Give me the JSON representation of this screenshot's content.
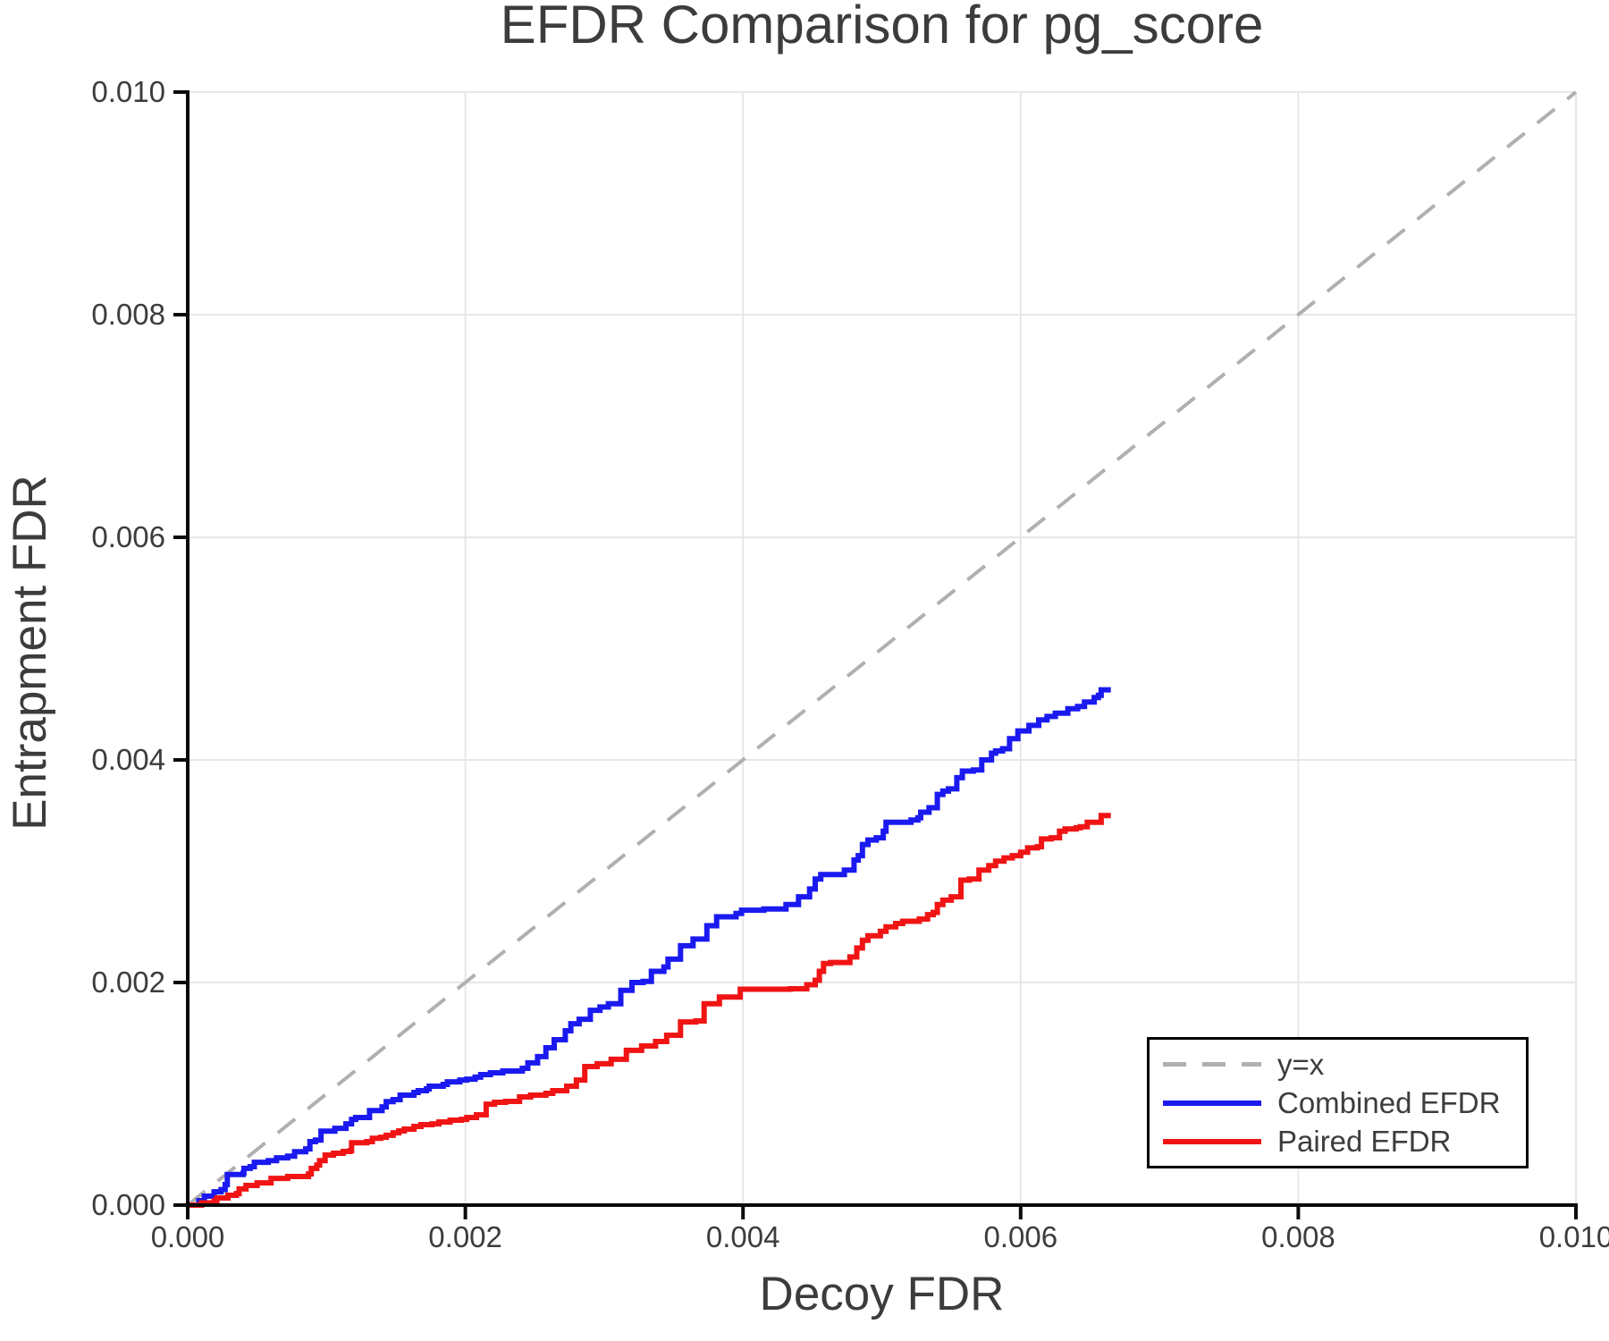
{
  "title": "EFDR Comparison for pg_score",
  "axes": {
    "xlabel": "Decoy FDR",
    "ylabel": "Entrapment FDR",
    "x_ticks": {
      "values": [
        0,
        0.002,
        0.004,
        0.006,
        0.008,
        0.01
      ],
      "labels": [
        "0.000",
        "0.002",
        "0.004",
        "0.006",
        "0.008",
        "0.010"
      ]
    },
    "y_ticks": {
      "values": [
        0,
        0.002,
        0.004,
        0.006,
        0.008,
        0.01
      ],
      "labels": [
        "0.000",
        "0.002",
        "0.004",
        "0.006",
        "0.008",
        "0.010"
      ]
    }
  },
  "style": {
    "grid_color": "#e7e7e7",
    "spine_color": "#0a0a0a",
    "text_color": "#3c3c3c",
    "dash_color": "#b0b0b0",
    "combined_color": "#1a1af0",
    "paired_color": "#f01414"
  },
  "legend": {
    "items": [
      {
        "label": "y=x",
        "color": "#b0b0b0",
        "dashed": true
      },
      {
        "label": "Combined EFDR",
        "color": "#1a1af0",
        "dashed": false
      },
      {
        "label": "Paired EFDR",
        "color": "#f01414",
        "dashed": false
      }
    ]
  },
  "chart_data": {
    "type": "line",
    "title": "EFDR Comparison for pg_score",
    "xlabel": "Decoy FDR",
    "ylabel": "Entrapment FDR",
    "xlim": [
      0,
      0.01
    ],
    "ylim": [
      0,
      0.01
    ],
    "grid": true,
    "legend_position": "lower right",
    "series": [
      {
        "name": "y=x",
        "color": "#b0b0b0",
        "dashed": true,
        "step": false,
        "width": 4,
        "points": [
          [
            0,
            0
          ],
          [
            0.01,
            0.01
          ]
        ]
      },
      {
        "name": "Combined EFDR",
        "color": "#1a1af0",
        "dashed": false,
        "step": true,
        "width": 6,
        "points": [
          [
            0,
            0
          ],
          [
            8e-05,
            4e-05
          ],
          [
            0.00012,
            8e-05
          ],
          [
            0.00019,
            0.00012
          ],
          [
            0.00024,
            0.00014
          ],
          [
            0.00027,
            0.000185
          ],
          [
            0.000285,
            0.000275
          ],
          [
            0.0004,
            0.00029
          ],
          [
            0.000405,
            0.00033
          ],
          [
            0.00045,
            0.000345
          ],
          [
            0.00048,
            0.000385
          ],
          [
            0.00058,
            0.0004
          ],
          [
            0.00064,
            0.000425
          ],
          [
            0.00072,
            0.00044
          ],
          [
            0.00077,
            0.00048
          ],
          [
            0.00085,
            0.000505
          ],
          [
            0.00088,
            0.00057
          ],
          [
            0.00092,
            0.000585
          ],
          [
            0.00096,
            0.000665
          ],
          [
            0.00106,
            0.00069
          ],
          [
            0.00114,
            0.00073
          ],
          [
            0.00118,
            0.00077
          ],
          [
            0.00121,
            0.000787
          ],
          [
            0.00131,
            0.00085
          ],
          [
            0.0014,
            0.000883
          ],
          [
            0.00143,
            0.00093
          ],
          [
            0.00148,
            0.000948
          ],
          [
            0.00153,
            0.000988
          ],
          [
            0.00163,
            0.001012
          ],
          [
            0.00166,
            0.001028
          ],
          [
            0.00172,
            0.001044
          ],
          [
            0.00174,
            0.001068
          ],
          [
            0.00184,
            0.001084
          ],
          [
            0.00187,
            0.001108
          ],
          [
            0.00196,
            0.001124
          ],
          [
            0.00201,
            0.001132
          ],
          [
            0.00207,
            0.001149
          ],
          [
            0.00211,
            0.001173
          ],
          [
            0.00218,
            0.001189
          ],
          [
            0.00227,
            0.001205
          ],
          [
            0.00241,
            0.001229
          ],
          [
            0.00245,
            0.001278
          ],
          [
            0.00252,
            0.001334
          ],
          [
            0.00258,
            0.001414
          ],
          [
            0.00264,
            0.001486
          ],
          [
            0.00272,
            0.001566
          ],
          [
            0.00276,
            0.00163
          ],
          [
            0.00282,
            0.00167
          ],
          [
            0.0029,
            0.00175
          ],
          [
            0.00297,
            0.00178
          ],
          [
            0.00303,
            0.00181
          ],
          [
            0.00312,
            0.00193
          ],
          [
            0.0032,
            0.002
          ],
          [
            0.00328,
            0.00201
          ],
          [
            0.00334,
            0.0021
          ],
          [
            0.00343,
            0.00214
          ],
          [
            0.00346,
            0.00221
          ],
          [
            0.00355,
            0.00233
          ],
          [
            0.00364,
            0.00239
          ],
          [
            0.00374,
            0.00251
          ],
          [
            0.00381,
            0.00259
          ],
          [
            0.00395,
            0.00262
          ],
          [
            0.00399,
            0.00265
          ],
          [
            0.00415,
            0.00266
          ],
          [
            0.00431,
            0.0027
          ],
          [
            0.0044,
            0.00277
          ],
          [
            0.00448,
            0.00284
          ],
          [
            0.00452,
            0.00293
          ],
          [
            0.00456,
            0.00297
          ],
          [
            0.00473,
            0.00301
          ],
          [
            0.0048,
            0.0031
          ],
          [
            0.00483,
            0.00314
          ],
          [
            0.00486,
            0.00324
          ],
          [
            0.0049,
            0.00328
          ],
          [
            0.00496,
            0.0033
          ],
          [
            0.00501,
            0.00336
          ],
          [
            0.00503,
            0.00344
          ],
          [
            0.00521,
            0.00346
          ],
          [
            0.00526,
            0.00348
          ],
          [
            0.00528,
            0.00353
          ],
          [
            0.00534,
            0.00357
          ],
          [
            0.0054,
            0.00369
          ],
          [
            0.00544,
            0.00372
          ],
          [
            0.00548,
            0.00374
          ],
          [
            0.00554,
            0.00384
          ],
          [
            0.00558,
            0.0039
          ],
          [
            0.00566,
            0.00391
          ],
          [
            0.00572,
            0.004
          ],
          [
            0.00579,
            0.00406
          ],
          [
            0.00582,
            0.00408
          ],
          [
            0.00587,
            0.0041
          ],
          [
            0.00592,
            0.00419
          ],
          [
            0.00598,
            0.00426
          ],
          [
            0.00606,
            0.00431
          ],
          [
            0.00613,
            0.00436
          ],
          [
            0.00619,
            0.00439
          ],
          [
            0.00625,
            0.00442
          ],
          [
            0.00634,
            0.00446
          ],
          [
            0.00641,
            0.00448
          ],
          [
            0.00646,
            0.00452
          ],
          [
            0.00653,
            0.00456
          ],
          [
            0.00656,
            0.00458
          ],
          [
            0.00658,
            0.00463
          ],
          [
            0.00665,
            0.00463
          ]
        ]
      },
      {
        "name": "Paired EFDR",
        "color": "#f01414",
        "dashed": false,
        "step": true,
        "width": 6,
        "points": [
          [
            0,
            0
          ],
          [
            0.0001,
            2e-05
          ],
          [
            0.00019,
            4e-05
          ],
          [
            0.00021,
            6.4e-05
          ],
          [
            0.00029,
            8.8e-05
          ],
          [
            0.00035,
            0.000104
          ],
          [
            0.00037,
            0.000145
          ],
          [
            0.00042,
            0.000177
          ],
          [
            0.0005,
            0.0002
          ],
          [
            0.0006,
            0.00024
          ],
          [
            0.00072,
            0.000257
          ],
          [
            0.00087,
            0.00028
          ],
          [
            0.00089,
            0.000329
          ],
          [
            0.00093,
            0.00036
          ],
          [
            0.00095,
            0.0004
          ],
          [
            0.00099,
            0.00045
          ],
          [
            0.00105,
            0.000466
          ],
          [
            0.00112,
            0.000482
          ],
          [
            0.00117,
            0.00049
          ],
          [
            0.00118,
            0.00056
          ],
          [
            0.00129,
            0.00057
          ],
          [
            0.00133,
            0.0006
          ],
          [
            0.00139,
            0.00061
          ],
          [
            0.00143,
            0.000627
          ],
          [
            0.00148,
            0.00065
          ],
          [
            0.00152,
            0.000667
          ],
          [
            0.00156,
            0.000683
          ],
          [
            0.00163,
            0.000707
          ],
          [
            0.00168,
            0.000723
          ],
          [
            0.00176,
            0.00073
          ],
          [
            0.00181,
            0.000747
          ],
          [
            0.00189,
            0.000763
          ],
          [
            0.00197,
            0.00077
          ],
          [
            0.00201,
            0.000787
          ],
          [
            0.00208,
            0.000811
          ],
          [
            0.00215,
            0.000907
          ],
          [
            0.00221,
            0.000924
          ],
          [
            0.00229,
            0.000932
          ],
          [
            0.00239,
            0.000972
          ],
          [
            0.00247,
            0.000988
          ],
          [
            0.00258,
            0.001004
          ],
          [
            0.00263,
            0.001028
          ],
          [
            0.00273,
            0.001068
          ],
          [
            0.0028,
            0.001124
          ],
          [
            0.00286,
            0.001245
          ],
          [
            0.00295,
            0.00127
          ],
          [
            0.00305,
            0.00131
          ],
          [
            0.00316,
            0.00139
          ],
          [
            0.00327,
            0.00143
          ],
          [
            0.00337,
            0.00147
          ],
          [
            0.00345,
            0.001526
          ],
          [
            0.00355,
            0.001646
          ],
          [
            0.00366,
            0.001655
          ],
          [
            0.00372,
            0.00181
          ],
          [
            0.00383,
            0.00187
          ],
          [
            0.00398,
            0.00194
          ],
          [
            0.00434,
            0.001944
          ],
          [
            0.00446,
            0.00198
          ],
          [
            0.00452,
            0.00202
          ],
          [
            0.00455,
            0.0021
          ],
          [
            0.00458,
            0.00217
          ],
          [
            0.00463,
            0.00218
          ],
          [
            0.00477,
            0.00223
          ],
          [
            0.00482,
            0.00231
          ],
          [
            0.00486,
            0.00238
          ],
          [
            0.0049,
            0.00242
          ],
          [
            0.00499,
            0.00246
          ],
          [
            0.00503,
            0.0025
          ],
          [
            0.0051,
            0.00253
          ],
          [
            0.00515,
            0.00255
          ],
          [
            0.00527,
            0.00257
          ],
          [
            0.00533,
            0.00261
          ],
          [
            0.00537,
            0.00263
          ],
          [
            0.0054,
            0.0027
          ],
          [
            0.00544,
            0.00274
          ],
          [
            0.0055,
            0.00277
          ],
          [
            0.00557,
            0.00292
          ],
          [
            0.00563,
            0.00293
          ],
          [
            0.0057,
            0.00301
          ],
          [
            0.00577,
            0.00305
          ],
          [
            0.00582,
            0.00309
          ],
          [
            0.00588,
            0.00312
          ],
          [
            0.00594,
            0.00314
          ],
          [
            0.006,
            0.00317
          ],
          [
            0.00605,
            0.00321
          ],
          [
            0.00612,
            0.00322
          ],
          [
            0.00615,
            0.00329
          ],
          [
            0.00622,
            0.0033
          ],
          [
            0.00628,
            0.00336
          ],
          [
            0.00632,
            0.00338
          ],
          [
            0.0064,
            0.00339
          ],
          [
            0.00643,
            0.0034
          ],
          [
            0.00648,
            0.00344
          ],
          [
            0.00658,
            0.0035
          ],
          [
            0.00665,
            0.0035
          ]
        ]
      }
    ]
  }
}
